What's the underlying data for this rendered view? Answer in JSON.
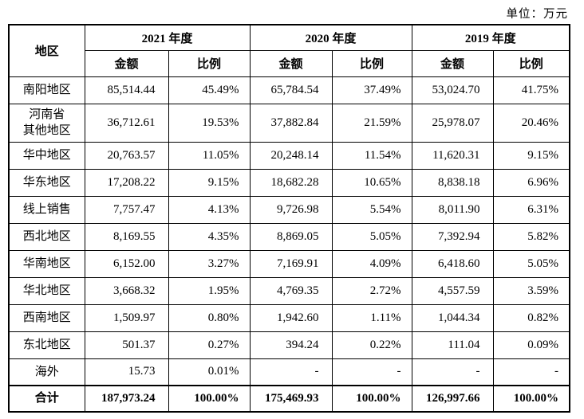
{
  "unit_label": "单位：万元",
  "table": {
    "region_header": "地区",
    "year_groups": [
      {
        "label": "2021 年度"
      },
      {
        "label": "2020 年度"
      },
      {
        "label": "2019 年度"
      }
    ],
    "sub_headers": {
      "amount": "金额",
      "ratio": "比例"
    },
    "rows": [
      {
        "region": "南阳地区",
        "values": [
          "85,514.44",
          "45.49%",
          "65,784.54",
          "37.49%",
          "53,024.70",
          "41.75%"
        ]
      },
      {
        "region": "河南省\n其他地区",
        "values": [
          "36,712.61",
          "19.53%",
          "37,882.84",
          "21.59%",
          "25,978.07",
          "20.46%"
        ]
      },
      {
        "region": "华中地区",
        "values": [
          "20,763.57",
          "11.05%",
          "20,248.14",
          "11.54%",
          "11,620.31",
          "9.15%"
        ]
      },
      {
        "region": "华东地区",
        "values": [
          "17,208.22",
          "9.15%",
          "18,682.28",
          "10.65%",
          "8,838.18",
          "6.96%"
        ]
      },
      {
        "region": "线上销售",
        "values": [
          "7,757.47",
          "4.13%",
          "9,726.98",
          "5.54%",
          "8,011.90",
          "6.31%"
        ]
      },
      {
        "region": "西北地区",
        "values": [
          "8,169.55",
          "4.35%",
          "8,869.05",
          "5.05%",
          "7,392.94",
          "5.82%"
        ]
      },
      {
        "region": "华南地区",
        "values": [
          "6,152.00",
          "3.27%",
          "7,169.91",
          "4.09%",
          "6,418.60",
          "5.05%"
        ]
      },
      {
        "region": "华北地区",
        "values": [
          "3,668.32",
          "1.95%",
          "4,769.35",
          "2.72%",
          "4,557.59",
          "3.59%"
        ]
      },
      {
        "region": "西南地区",
        "values": [
          "1,509.97",
          "0.80%",
          "1,942.60",
          "1.11%",
          "1,044.34",
          "0.82%"
        ]
      },
      {
        "region": "东北地区",
        "values": [
          "501.37",
          "0.27%",
          "394.24",
          "0.22%",
          "111.04",
          "0.09%"
        ]
      },
      {
        "region": "海外",
        "values": [
          "15.73",
          "0.01%",
          "-",
          "-",
          "-",
          "-"
        ]
      }
    ],
    "total_row": {
      "region": "合计",
      "values": [
        "187,973.24",
        "100.00%",
        "175,469.93",
        "100.00%",
        "126,997.66",
        "100.00%"
      ]
    }
  }
}
